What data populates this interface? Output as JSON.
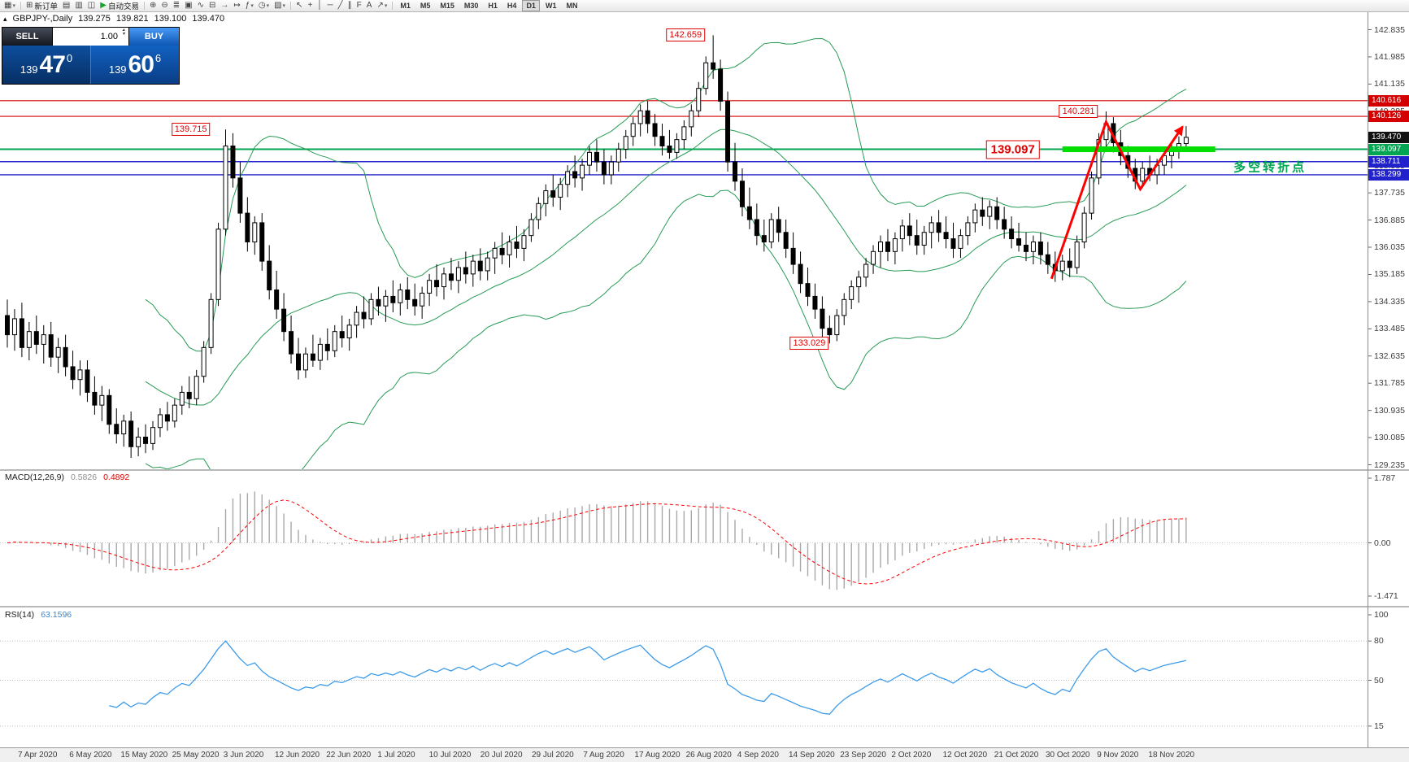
{
  "toolbar": {
    "items": [
      {
        "name": "new-chart-button",
        "glyph": "▦",
        "caret": true
      },
      {
        "name": "sep"
      },
      {
        "name": "new-order-button",
        "glyph": "⊞",
        "label": "新订单"
      },
      {
        "name": "market-watch-button",
        "glyph": "▤"
      },
      {
        "name": "data-window-button",
        "glyph": "▥"
      },
      {
        "name": "navigator-button",
        "glyph": "◫"
      },
      {
        "name": "autotrading-button",
        "glyph": "▶",
        "glyph_color": "#1aa32b",
        "label": "自动交易"
      },
      {
        "name": "sep"
      },
      {
        "name": "zoom-in-button",
        "glyph": "⊕"
      },
      {
        "name": "zoom-out-button",
        "glyph": "⊖"
      },
      {
        "name": "bar-chart-button",
        "glyph": "≣"
      },
      {
        "name": "candlestick-chart-button",
        "glyph": "▣"
      },
      {
        "name": "line-chart-button",
        "glyph": "∿"
      },
      {
        "name": "tile-windows-button",
        "glyph": "⊟"
      },
      {
        "name": "auto-scroll-button",
        "glyph": "→"
      },
      {
        "name": "chart-shift-button",
        "glyph": "↦"
      },
      {
        "name": "indicators-button",
        "glyph": "ƒ",
        "caret": true
      },
      {
        "name": "periods-button",
        "glyph": "◷",
        "caret": true
      },
      {
        "name": "templates-button",
        "glyph": "▧",
        "caret": true
      },
      {
        "name": "sep"
      },
      {
        "name": "cursor-button",
        "glyph": "↖"
      },
      {
        "name": "crosshair-button",
        "glyph": "+"
      },
      {
        "name": "vertical-line-button",
        "glyph": "│"
      },
      {
        "name": "horizontal-line-button",
        "glyph": "─"
      },
      {
        "name": "trendline-button",
        "glyph": "╱"
      },
      {
        "name": "channel-button",
        "glyph": "∥"
      },
      {
        "name": "fibonacci-button",
        "glyph": "F"
      },
      {
        "name": "text-button",
        "glyph": "A"
      },
      {
        "name": "arrows-button",
        "glyph": "↗",
        "caret": true
      },
      {
        "name": "sep"
      }
    ],
    "timeframes": [
      "M1",
      "M5",
      "M15",
      "M30",
      "H1",
      "H4",
      "D1",
      "W1",
      "MN"
    ],
    "active_timeframe": "D1"
  },
  "chart_header": {
    "symbol_period": "GBPJPY-,Daily",
    "open": "139.275",
    "high": "139.821",
    "low": "139.100",
    "close": "139.470"
  },
  "one_click_panel": {
    "sell_label": "SELL",
    "buy_label": "BUY",
    "volume": "1.00",
    "sell": {
      "prefix": "139",
      "big": "47",
      "sup": "0"
    },
    "buy": {
      "prefix": "139",
      "big": "60",
      "sup": "6"
    }
  },
  "chart_data": {
    "type": "candlestick",
    "symbol": "GBPJPY",
    "period": "Daily",
    "y_max": 142.835,
    "y_min": 129.235,
    "y_ticks": [
      "142.835",
      "141.985",
      "141.135",
      "140.285",
      "139.435",
      "138.585",
      "137.735",
      "136.885",
      "136.035",
      "135.185",
      "134.335",
      "133.485",
      "132.635",
      "131.785",
      "130.935",
      "130.085",
      "129.235"
    ],
    "x_dates": [
      "7 Apr 2020",
      "6 May 2020",
      "15 May 2020",
      "25 May 2020",
      "3 Jun 2020",
      "12 Jun 2020",
      "22 Jun 2020",
      "1 Jul 2020",
      "10 Jul 2020",
      "20 Jul 2020",
      "29 Jul 2020",
      "7 Aug 2020",
      "17 Aug 2020",
      "26 Aug 2020",
      "4 Sep 2020",
      "14 Sep 2020",
      "23 Sep 2020",
      "2 Oct 2020",
      "12 Oct 2020",
      "21 Oct 2020",
      "30 Oct 2020",
      "9 Nov 2020",
      "18 Nov 2020"
    ],
    "ohlc": [
      [
        133.9,
        134.4,
        132.9,
        133.3
      ],
      [
        133.3,
        134.1,
        132.8,
        133.8
      ],
      [
        133.8,
        134.3,
        132.6,
        132.9
      ],
      [
        132.9,
        133.7,
        132.5,
        133.4
      ],
      [
        133.4,
        133.9,
        132.7,
        133.0
      ],
      [
        133.0,
        133.6,
        132.4,
        133.3
      ],
      [
        133.3,
        133.7,
        132.3,
        132.6
      ],
      [
        132.6,
        133.2,
        132.1,
        132.9
      ],
      [
        132.9,
        133.3,
        132.0,
        132.3
      ],
      [
        132.3,
        132.8,
        131.6,
        131.9
      ],
      [
        131.9,
        132.5,
        131.4,
        132.2
      ],
      [
        132.2,
        132.5,
        131.2,
        131.5
      ],
      [
        131.5,
        132.0,
        130.8,
        131.1
      ],
      [
        131.1,
        131.7,
        130.6,
        131.4
      ],
      [
        131.4,
        131.6,
        130.2,
        130.5
      ],
      [
        130.5,
        131.0,
        129.9,
        130.2
      ],
      [
        130.2,
        130.8,
        129.8,
        130.6
      ],
      [
        130.6,
        130.9,
        129.45,
        129.8
      ],
      [
        129.8,
        130.4,
        129.5,
        130.1
      ],
      [
        130.1,
        130.5,
        129.6,
        129.9
      ],
      [
        129.9,
        130.6,
        129.7,
        130.4
      ],
      [
        130.4,
        131.0,
        130.1,
        130.8
      ],
      [
        130.8,
        131.2,
        130.3,
        130.6
      ],
      [
        130.6,
        131.3,
        130.4,
        131.1
      ],
      [
        131.1,
        131.7,
        130.8,
        131.5
      ],
      [
        131.5,
        132.0,
        131.0,
        131.3
      ],
      [
        131.3,
        132.2,
        131.1,
        132.0
      ],
      [
        132.0,
        133.1,
        131.8,
        132.9
      ],
      [
        132.9,
        134.6,
        132.7,
        134.4
      ],
      [
        134.4,
        136.8,
        134.2,
        136.6
      ],
      [
        136.6,
        139.715,
        136.4,
        139.2
      ],
      [
        139.2,
        139.6,
        137.9,
        138.2
      ],
      [
        138.2,
        138.7,
        136.8,
        137.1
      ],
      [
        137.1,
        137.6,
        135.9,
        136.2
      ],
      [
        136.2,
        137.0,
        135.8,
        136.8
      ],
      [
        136.8,
        137.1,
        135.3,
        135.6
      ],
      [
        135.6,
        136.1,
        134.4,
        134.7
      ],
      [
        134.7,
        135.3,
        133.8,
        134.1
      ],
      [
        134.1,
        134.6,
        133.1,
        133.4
      ],
      [
        133.4,
        133.9,
        132.4,
        132.7
      ],
      [
        132.7,
        133.2,
        131.9,
        132.2
      ],
      [
        132.2,
        132.9,
        131.95,
        132.7
      ],
      [
        132.7,
        133.3,
        132.3,
        132.5
      ],
      [
        132.5,
        133.2,
        132.2,
        133.0
      ],
      [
        133.0,
        133.5,
        132.5,
        132.8
      ],
      [
        132.8,
        133.6,
        132.6,
        133.4
      ],
      [
        133.4,
        133.9,
        132.9,
        133.2
      ],
      [
        133.2,
        133.8,
        132.8,
        133.6
      ],
      [
        133.6,
        134.2,
        133.2,
        134.0
      ],
      [
        134.0,
        134.5,
        133.5,
        133.8
      ],
      [
        133.8,
        134.6,
        133.6,
        134.4
      ],
      [
        134.4,
        134.8,
        133.9,
        134.2
      ],
      [
        134.2,
        134.7,
        133.7,
        134.5
      ],
      [
        134.5,
        135.0,
        134.0,
        134.3
      ],
      [
        134.3,
        134.9,
        133.9,
        134.7
      ],
      [
        134.7,
        135.1,
        134.1,
        134.4
      ],
      [
        134.4,
        134.9,
        133.9,
        134.2
      ],
      [
        134.2,
        134.8,
        133.8,
        134.6
      ],
      [
        134.6,
        135.2,
        134.2,
        135.0
      ],
      [
        135.0,
        135.5,
        134.5,
        134.8
      ],
      [
        134.8,
        135.4,
        134.4,
        135.2
      ],
      [
        135.2,
        135.7,
        134.7,
        135.0
      ],
      [
        135.0,
        135.6,
        134.6,
        135.4
      ],
      [
        135.4,
        135.9,
        134.9,
        135.2
      ],
      [
        135.2,
        135.8,
        134.8,
        135.6
      ],
      [
        135.6,
        136.0,
        135.0,
        135.3
      ],
      [
        135.3,
        135.9,
        135.0,
        135.7
      ],
      [
        135.7,
        136.2,
        135.2,
        136.0
      ],
      [
        136.0,
        136.5,
        135.5,
        135.8
      ],
      [
        135.8,
        136.4,
        135.4,
        136.2
      ],
      [
        136.2,
        136.7,
        135.7,
        136.0
      ],
      [
        136.0,
        136.6,
        135.6,
        136.4
      ],
      [
        136.4,
        137.1,
        136.2,
        136.9
      ],
      [
        136.9,
        137.6,
        136.6,
        137.4
      ],
      [
        137.4,
        138.0,
        137.0,
        137.8
      ],
      [
        137.8,
        138.3,
        137.3,
        137.6
      ],
      [
        137.6,
        138.2,
        137.2,
        138.0
      ],
      [
        138.0,
        138.6,
        137.6,
        138.4
      ],
      [
        138.4,
        138.9,
        137.9,
        138.2
      ],
      [
        138.2,
        138.8,
        137.8,
        138.6
      ],
      [
        138.6,
        139.2,
        138.3,
        139.0
      ],
      [
        139.0,
        139.4,
        138.4,
        138.7
      ],
      [
        138.7,
        139.1,
        138.0,
        138.3
      ],
      [
        138.3,
        138.9,
        138.0,
        138.7
      ],
      [
        138.7,
        139.3,
        138.4,
        139.1
      ],
      [
        139.1,
        139.7,
        138.8,
        139.5
      ],
      [
        139.5,
        140.1,
        139.2,
        139.9
      ],
      [
        139.9,
        140.5,
        139.5,
        140.3
      ],
      [
        140.3,
        140.6,
        139.6,
        139.9
      ],
      [
        139.9,
        140.2,
        139.2,
        139.5
      ],
      [
        139.5,
        139.9,
        138.9,
        139.2
      ],
      [
        139.2,
        139.7,
        138.8,
        139.0
      ],
      [
        139.0,
        139.6,
        138.8,
        139.4
      ],
      [
        139.4,
        140.0,
        139.1,
        139.8
      ],
      [
        139.8,
        140.5,
        139.5,
        140.3
      ],
      [
        140.3,
        141.2,
        140.1,
        141.0
      ],
      [
        141.0,
        142.0,
        140.8,
        141.8
      ],
      [
        141.8,
        142.659,
        141.3,
        141.6
      ],
      [
        141.6,
        141.9,
        140.3,
        140.6
      ],
      [
        140.6,
        140.9,
        138.4,
        138.7
      ],
      [
        138.7,
        139.3,
        137.8,
        138.1
      ],
      [
        138.1,
        138.5,
        137.0,
        137.3
      ],
      [
        137.3,
        137.9,
        136.6,
        136.9
      ],
      [
        136.9,
        137.4,
        136.1,
        136.4
      ],
      [
        136.4,
        136.9,
        135.9,
        136.2
      ],
      [
        136.2,
        137.1,
        136.0,
        136.9
      ],
      [
        136.9,
        137.3,
        136.2,
        136.5
      ],
      [
        136.5,
        136.9,
        135.7,
        136.0
      ],
      [
        136.0,
        136.5,
        135.2,
        135.5
      ],
      [
        135.5,
        135.9,
        134.6,
        134.9
      ],
      [
        134.9,
        135.4,
        134.2,
        134.5
      ],
      [
        134.5,
        134.9,
        133.8,
        134.1
      ],
      [
        134.1,
        134.5,
        133.2,
        133.5
      ],
      [
        133.5,
        133.9,
        133.029,
        133.3
      ],
      [
        133.3,
        134.1,
        133.1,
        133.9
      ],
      [
        133.9,
        134.6,
        133.6,
        134.4
      ],
      [
        134.4,
        135.0,
        134.1,
        134.8
      ],
      [
        134.8,
        135.3,
        134.3,
        135.1
      ],
      [
        135.1,
        135.7,
        134.8,
        135.5
      ],
      [
        135.5,
        136.1,
        135.2,
        135.9
      ],
      [
        135.9,
        136.4,
        135.4,
        136.2
      ],
      [
        136.2,
        136.6,
        135.6,
        135.9
      ],
      [
        135.9,
        136.5,
        135.5,
        136.3
      ],
      [
        136.3,
        136.9,
        135.9,
        136.7
      ],
      [
        136.7,
        137.1,
        136.1,
        136.4
      ],
      [
        136.4,
        136.9,
        135.8,
        136.1
      ],
      [
        136.1,
        136.7,
        135.8,
        136.5
      ],
      [
        136.5,
        137.0,
        136.0,
        136.8
      ],
      [
        136.8,
        137.2,
        136.2,
        136.5
      ],
      [
        136.5,
        137.0,
        136.0,
        136.3
      ],
      [
        136.3,
        136.8,
        135.7,
        136.0
      ],
      [
        136.0,
        136.6,
        135.7,
        136.4
      ],
      [
        136.4,
        137.0,
        136.1,
        136.8
      ],
      [
        136.8,
        137.4,
        136.5,
        137.2
      ],
      [
        137.2,
        137.6,
        136.7,
        137.0
      ],
      [
        137.0,
        137.5,
        136.6,
        137.3
      ],
      [
        137.3,
        137.6,
        136.6,
        136.9
      ],
      [
        136.9,
        137.3,
        136.3,
        136.6
      ],
      [
        136.6,
        137.0,
        136.0,
        136.3
      ],
      [
        136.3,
        136.8,
        135.9,
        136.1
      ],
      [
        136.1,
        136.5,
        135.6,
        135.9
      ],
      [
        135.9,
        136.4,
        135.5,
        136.2
      ],
      [
        136.2,
        136.5,
        135.5,
        135.8
      ],
      [
        135.8,
        136.2,
        135.2,
        135.5
      ],
      [
        135.5,
        135.9,
        134.95,
        135.3
      ],
      [
        135.3,
        135.8,
        135.0,
        135.6
      ],
      [
        135.6,
        136.0,
        135.1,
        135.4
      ],
      [
        135.4,
        136.4,
        135.2,
        136.2
      ],
      [
        136.2,
        137.3,
        136.0,
        137.1
      ],
      [
        137.1,
        138.4,
        136.9,
        138.2
      ],
      [
        138.2,
        139.6,
        138.0,
        139.4
      ],
      [
        139.4,
        140.281,
        139.1,
        139.9
      ],
      [
        139.9,
        140.1,
        139.0,
        139.3
      ],
      [
        139.3,
        139.7,
        138.6,
        138.9
      ],
      [
        138.9,
        139.2,
        138.2,
        138.5
      ],
      [
        138.5,
        138.8,
        137.85,
        138.1
      ],
      [
        138.1,
        138.7,
        137.9,
        138.5
      ],
      [
        138.5,
        138.9,
        138.1,
        138.3
      ],
      [
        138.3,
        138.8,
        138.0,
        138.6
      ],
      [
        138.6,
        139.1,
        138.3,
        138.9
      ],
      [
        138.9,
        139.3,
        138.5,
        139.1
      ],
      [
        139.1,
        139.5,
        138.8,
        139.275
      ],
      [
        139.275,
        139.821,
        139.1,
        139.47
      ]
    ],
    "indicators": {
      "bollinger": {
        "period": 20,
        "deviation": 2,
        "color": "#279a55"
      },
      "macd": {
        "label": "MACD(12,26,9)",
        "main": "0.5826",
        "signal": "0.4892",
        "scale": [
          {
            "text": "1.787",
            "value": 1.787
          },
          {
            "text": "0.00",
            "value": 0
          },
          {
            "text": "-1.471",
            "value": -1.471
          }
        ]
      },
      "rsi": {
        "label": "RSI(14)",
        "value": "63.1596",
        "scale": [
          {
            "text": "100",
            "value": 100
          },
          {
            "text": "80",
            "value": 80
          },
          {
            "text": "50",
            "value": 50
          },
          {
            "text": "15",
            "value": 15
          }
        ],
        "levels": [
          80,
          50,
          15
        ]
      }
    },
    "levels": [
      {
        "price": 140.616,
        "color": "#d40000",
        "width": 1.2
      },
      {
        "price": 140.126,
        "color": "#d40000",
        "width": 1.2
      },
      {
        "price": 139.097,
        "color": "#00a651",
        "width": 2
      },
      {
        "price": 138.711,
        "color": "#2222cc",
        "width": 1.4
      },
      {
        "price": 138.299,
        "color": "#2222cc",
        "width": 1.4
      }
    ],
    "scale_boxes": [
      {
        "text": "140.616",
        "price": 140.616,
        "bg": "#d40000"
      },
      {
        "text": "140.126",
        "price": 140.126,
        "bg": "#d40000"
      },
      {
        "text": "139.470",
        "price": 139.47,
        "bg": "#111111"
      },
      {
        "text": "139.097",
        "price": 139.097,
        "bg": "#00a651"
      },
      {
        "text": "138.711",
        "price": 138.711,
        "bg": "#2222cc"
      },
      {
        "text": "138.299",
        "price": 138.299,
        "bg": "#2222cc"
      }
    ],
    "price_labels": [
      {
        "text": "142.659",
        "price": 142.659,
        "anchor_index": 97
      },
      {
        "text": "139.715",
        "price": 139.715,
        "anchor_index": 29
      },
      {
        "text": "140.281",
        "price": 140.281,
        "anchor_index": 151
      },
      {
        "text": "139.097",
        "price": 139.097,
        "anchor_index": 143,
        "large": true
      },
      {
        "text": "133.029",
        "price": 133.029,
        "anchor_index": 114
      }
    ],
    "support_bar": {
      "price": 139.097,
      "from_index": 145,
      "to_index": 166,
      "color": "#00dd00",
      "thickness": 7
    },
    "zigzag": {
      "color": "#ff0000",
      "width": 3,
      "points": [
        {
          "index": 143.5,
          "price": 135.05
        },
        {
          "index": 151,
          "price": 139.95
        },
        {
          "index": 155.7,
          "price": 137.85
        },
        {
          "index": 161.5,
          "price": 139.8
        }
      ]
    },
    "note": {
      "text": "多空转折点",
      "color": "#00a651",
      "index": 168.5,
      "price": 138.55
    }
  }
}
